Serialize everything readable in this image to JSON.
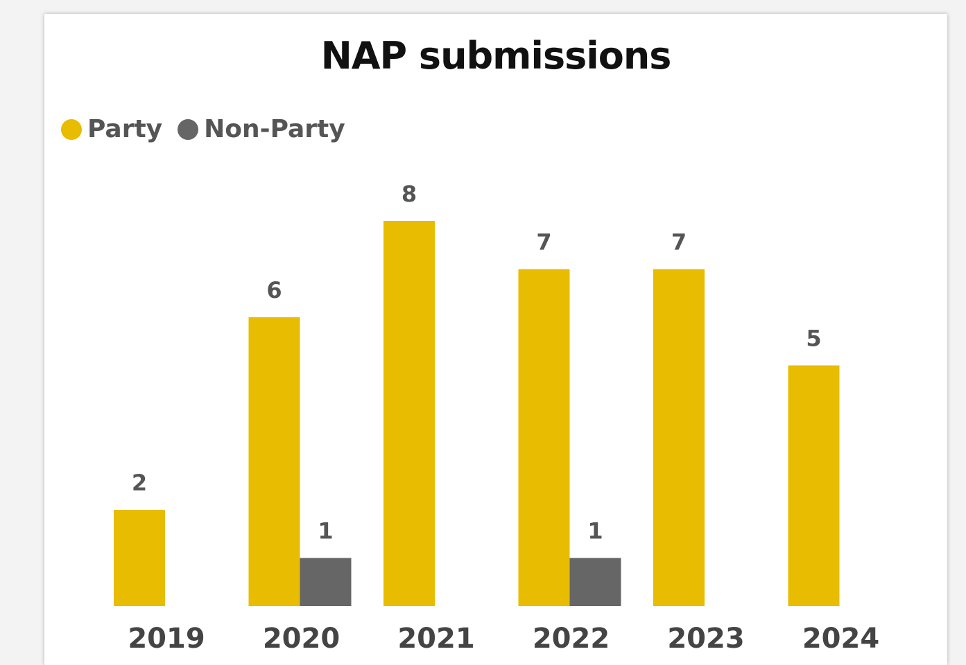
{
  "chart_data": {
    "type": "bar",
    "title": "NAP submissions",
    "categories": [
      "2019",
      "2020",
      "2021",
      "2022",
      "2023",
      "2024"
    ],
    "series": [
      {
        "name": "Party",
        "color": "#e8bc00",
        "values": [
          2,
          6,
          8,
          7,
          7,
          5
        ]
      },
      {
        "name": "Non-Party",
        "color": "#666666",
        "values": [
          null,
          1,
          null,
          1,
          null,
          null
        ]
      }
    ],
    "ylim": [
      0,
      8
    ],
    "grid": false,
    "legend": "top-left",
    "data_labels": true
  }
}
